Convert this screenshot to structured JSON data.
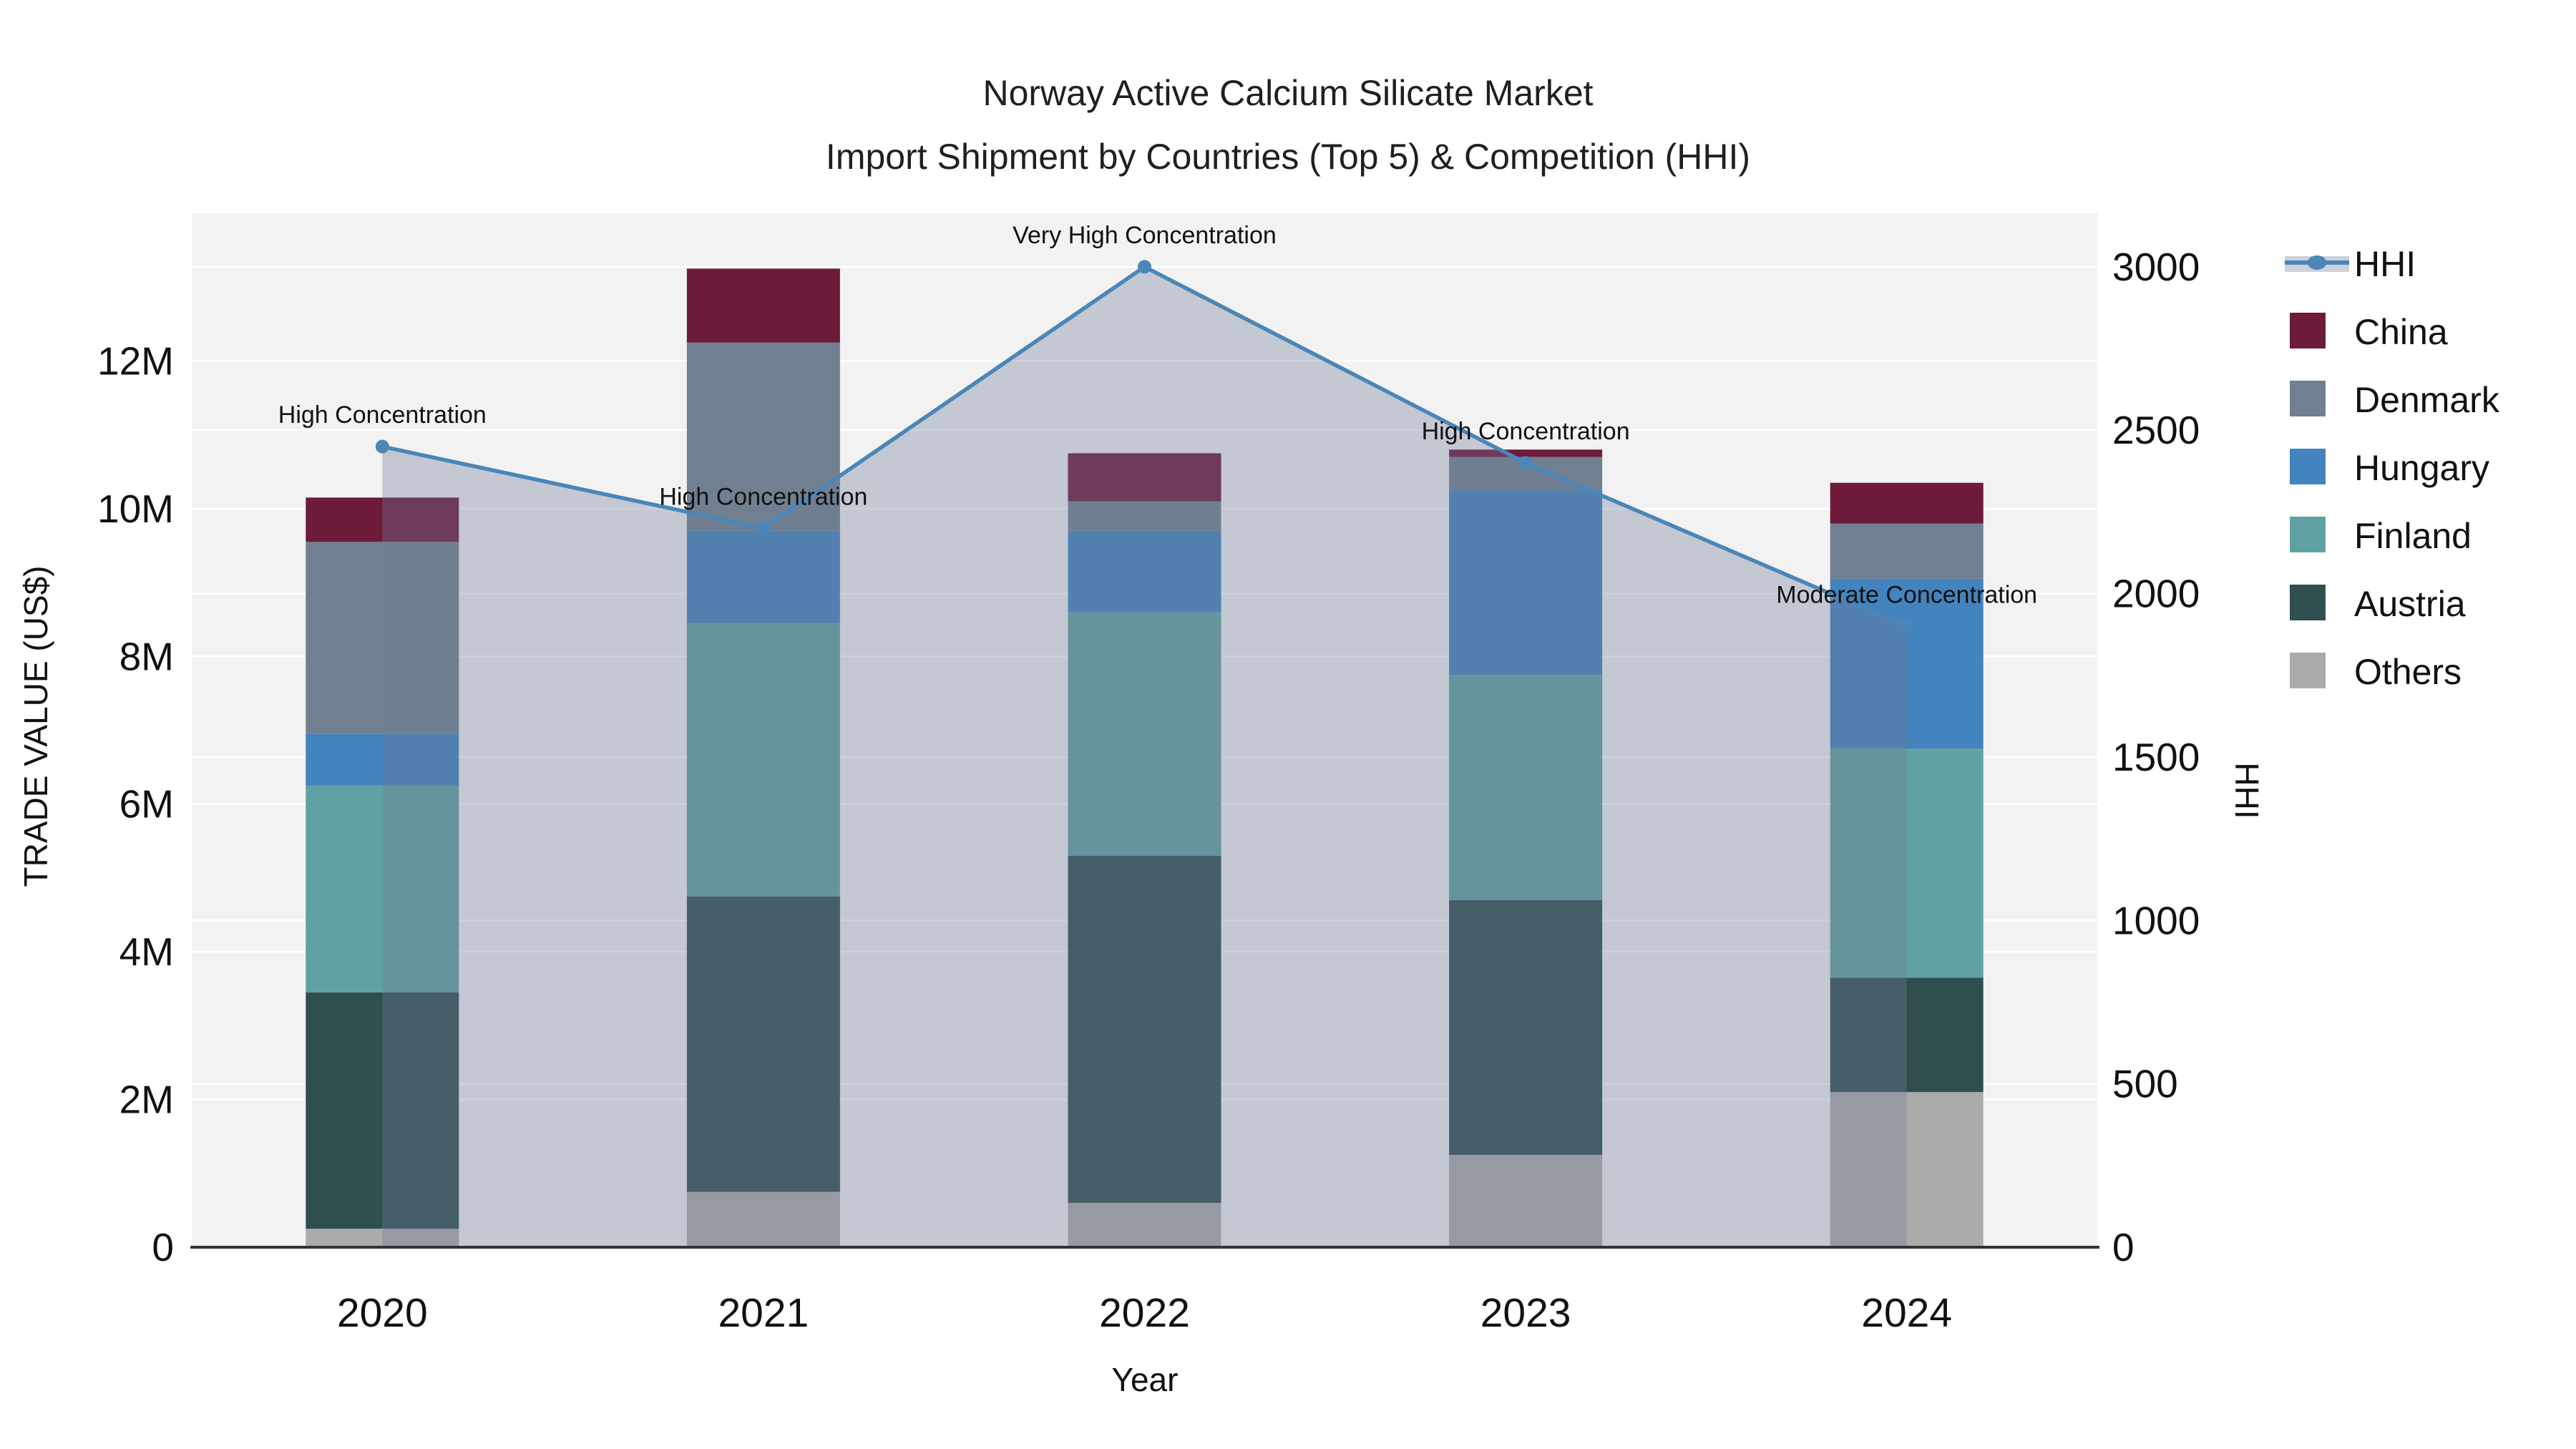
{
  "title": {
    "line1": "Norway Active Calcium Silicate Market",
    "line2": "Import Shipment by Countries (Top 5) & Competition (HHI)"
  },
  "chart_data": {
    "type": "bar",
    "subtype": "stacked-bar-with-line-overlay",
    "categories": [
      "2020",
      "2021",
      "2022",
      "2023",
      "2024"
    ],
    "value_unit": "US$ millions",
    "series": [
      {
        "name": "China",
        "color": "#6D1A3B",
        "values": [
          0.6,
          1.0,
          0.65,
          0.1,
          0.55
        ]
      },
      {
        "name": "Denmark",
        "color": "#708090",
        "values": [
          2.6,
          2.55,
          0.4,
          0.45,
          0.75
        ]
      },
      {
        "name": "Hungary",
        "color": "#4383BE",
        "values": [
          0.7,
          1.25,
          1.1,
          2.5,
          2.3
        ]
      },
      {
        "name": "Finland",
        "color": "#60A1A4",
        "values": [
          2.8,
          3.7,
          3.3,
          3.05,
          3.1
        ]
      },
      {
        "name": "Austria",
        "color": "#2F4F4F",
        "values": [
          3.2,
          4.0,
          4.7,
          3.45,
          1.55
        ]
      },
      {
        "name": "Others",
        "color": "#ABABA9",
        "values": [
          0.25,
          0.75,
          0.6,
          1.25,
          2.1
        ]
      }
    ],
    "stack_order_bottom_to_top": [
      "Others",
      "Austria",
      "Finland",
      "Hungary",
      "Denmark",
      "China"
    ],
    "hhi_line": {
      "name": "HHI",
      "color": "#4A86B8",
      "area_fill_color": "rgba(113,124,152,0.35)",
      "values": [
        2450,
        2200,
        3000,
        2400,
        1900
      ]
    },
    "annotations": [
      "High Concentration",
      "High Concentration",
      "Very High Concentration",
      "High Concentration",
      "Moderate Concentration"
    ],
    "xlabel": "Year",
    "ylabel": "TRADE VALUE (US$)",
    "y2label": "HHI",
    "ylim": [
      0,
      14
    ],
    "y2lim": [
      0,
      3164
    ],
    "yticks": [
      {
        "v": 0,
        "label": "0"
      },
      {
        "v": 2,
        "label": "2M"
      },
      {
        "v": 4,
        "label": "4M"
      },
      {
        "v": 6,
        "label": "6M"
      },
      {
        "v": 8,
        "label": "8M"
      },
      {
        "v": 10,
        "label": "10M"
      },
      {
        "v": 12,
        "label": "12M"
      }
    ],
    "y2ticks": [
      {
        "v": 0,
        "label": "0"
      },
      {
        "v": 500,
        "label": "500"
      },
      {
        "v": 1000,
        "label": "1000"
      },
      {
        "v": 1500,
        "label": "1500"
      },
      {
        "v": 2000,
        "label": "2000"
      },
      {
        "v": 2500,
        "label": "2500"
      },
      {
        "v": 3000,
        "label": "3000"
      }
    ],
    "grid": "horizontal white gridlines at primary and secondary axis ticks",
    "legend_position": "right",
    "plot_bg_color": "#F2F2F2",
    "axis_line_color": "#333333",
    "text_color": "#111111"
  },
  "legend": {
    "items": [
      "HHI",
      "China",
      "Denmark",
      "Hungary",
      "Finland",
      "Austria",
      "Others"
    ]
  }
}
